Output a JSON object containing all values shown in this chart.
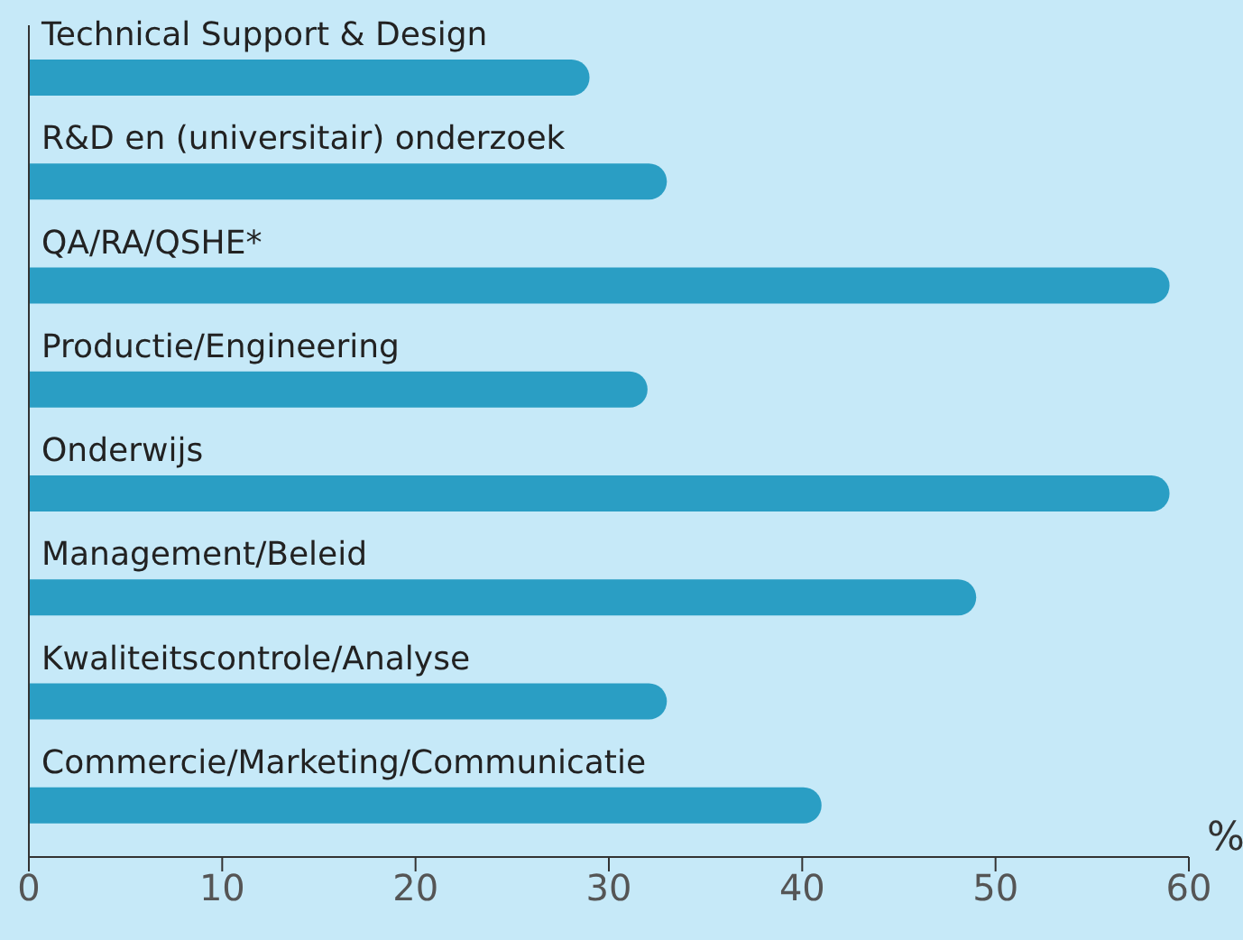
{
  "chart_data": {
    "type": "bar",
    "orientation": "horizontal",
    "xlabel": "%",
    "categories": [
      "Technical Support & Design",
      "R&D en (universitair) onderzoek",
      "QA/RA/QSHE*",
      "Productie/Engineering",
      "Onderwijs",
      "Management/Beleid",
      "Kwaliteitscontrole/Analyse",
      "Commercie/Marketing/Communicatie"
    ],
    "values": [
      29,
      33,
      59,
      32,
      59,
      49,
      33,
      41
    ],
    "color": "#2a9ec4",
    "xlim": [
      0,
      60
    ],
    "xticks": [
      0,
      10,
      20,
      30,
      40,
      50,
      60
    ],
    "grid": false,
    "legend": false
  }
}
